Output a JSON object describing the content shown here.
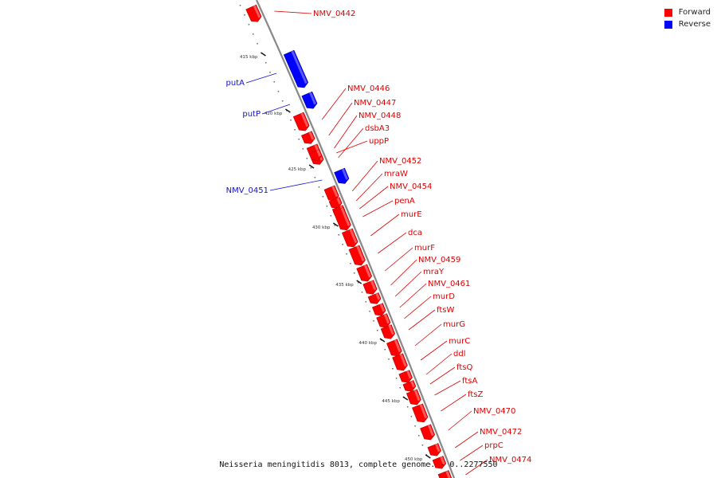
{
  "legend": [
    {
      "label": "Forward",
      "color": "#ff0000"
    },
    {
      "label": "Reverse",
      "color": "#0000ff"
    }
  ],
  "colors": {
    "forward": "#ff0000",
    "forward_label": "#dd0000",
    "reverse": "#0000ff",
    "reverse_label": "#1111cc",
    "backbone": "#888888"
  },
  "footer": "Neisseria meningitidis 8013, complete genome. - 0..2277550",
  "ticks": [
    {
      "label": "415 kbp",
      "kbp": 415
    },
    {
      "label": "420 kbp",
      "kbp": 420
    },
    {
      "label": "425 kbp",
      "kbp": 425
    },
    {
      "label": "430 kbp",
      "kbp": 430
    },
    {
      "label": "435 kbp",
      "kbp": 435
    },
    {
      "label": "440 kbp",
      "kbp": 440
    },
    {
      "label": "445 kbp",
      "kbp": 445
    },
    {
      "label": "450 kbp",
      "kbp": 450
    }
  ],
  "genes": [
    {
      "name": "NMV_0442",
      "strand": "forward"
    },
    {
      "name": "putA",
      "strand": "reverse"
    },
    {
      "name": "putP",
      "strand": "reverse"
    },
    {
      "name": "NMV_0446",
      "strand": "forward"
    },
    {
      "name": "NMV_0447",
      "strand": "forward"
    },
    {
      "name": "NMV_0448",
      "strand": "forward"
    },
    {
      "name": "dsbA3",
      "strand": "forward"
    },
    {
      "name": "uppP",
      "strand": "forward"
    },
    {
      "name": "NMV_0451",
      "strand": "reverse"
    },
    {
      "name": "NMV_0452",
      "strand": "forward"
    },
    {
      "name": "mraW",
      "strand": "forward"
    },
    {
      "name": "NMV_0454",
      "strand": "forward"
    },
    {
      "name": "penA",
      "strand": "forward"
    },
    {
      "name": "murE",
      "strand": "forward"
    },
    {
      "name": "dca",
      "strand": "forward"
    },
    {
      "name": "murF",
      "strand": "forward"
    },
    {
      "name": "NMV_0459",
      "strand": "forward"
    },
    {
      "name": "mraY",
      "strand": "forward"
    },
    {
      "name": "NMV_0461",
      "strand": "forward"
    },
    {
      "name": "murD",
      "strand": "forward"
    },
    {
      "name": "ftsW",
      "strand": "forward"
    },
    {
      "name": "murG",
      "strand": "forward"
    },
    {
      "name": "murC",
      "strand": "forward"
    },
    {
      "name": "ddl",
      "strand": "forward"
    },
    {
      "name": "ftsQ",
      "strand": "forward"
    },
    {
      "name": "ftsA",
      "strand": "forward"
    },
    {
      "name": "ftsZ",
      "strand": "forward"
    },
    {
      "name": "NMV_0470",
      "strand": "forward"
    },
    {
      "name": "NMV_0472",
      "strand": "forward"
    },
    {
      "name": "prpC",
      "strand": "forward"
    },
    {
      "name": "NMV_0474",
      "strand": "forward"
    }
  ]
}
